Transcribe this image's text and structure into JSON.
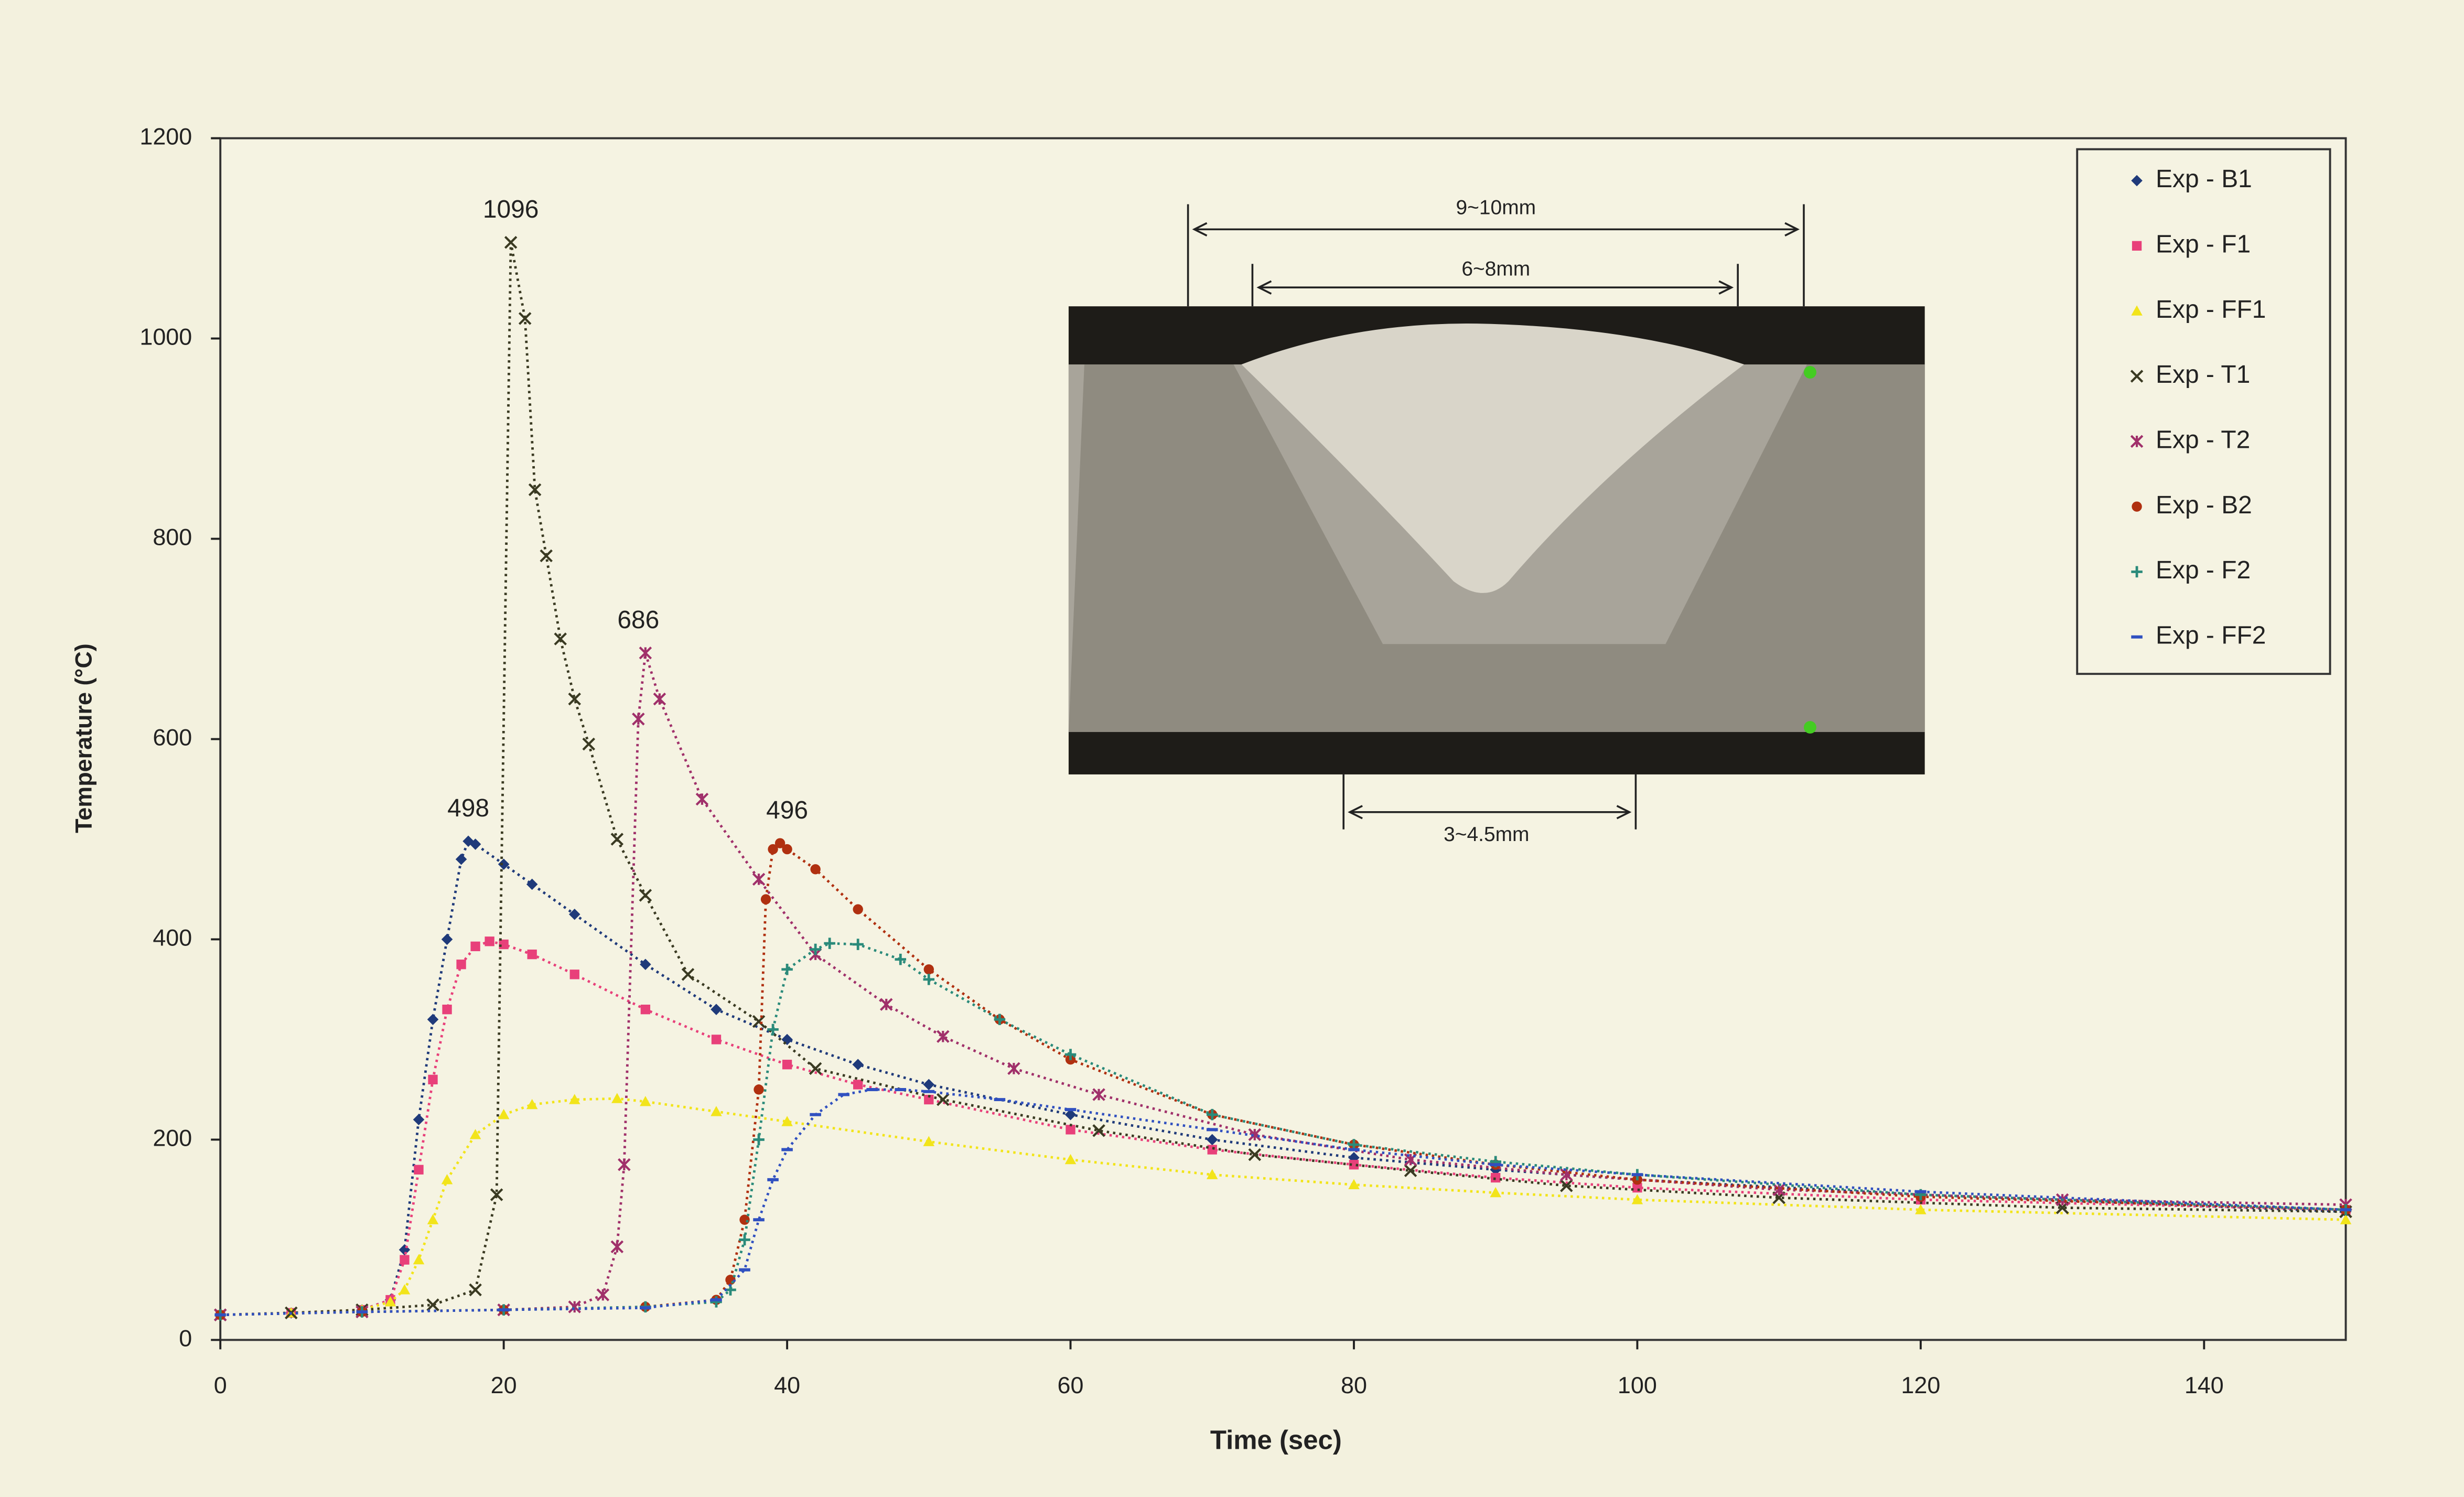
{
  "chart_data": {
    "type": "scatter",
    "x_label": "Time (sec)",
    "y_label": "Temperature (°C)",
    "xlim": [
      0,
      150
    ],
    "xticks": [
      0,
      20,
      40,
      60,
      80,
      100,
      120,
      140
    ],
    "ylim": [
      0,
      1200
    ],
    "yticks": [
      0,
      200,
      400,
      600,
      800,
      1000,
      1200
    ],
    "grid": false,
    "legend": "upper right",
    "series": [
      {
        "name": "Exp - B1",
        "color": "#1f3a7a",
        "marker": "diamond",
        "x": [
          0,
          5,
          10,
          12,
          13,
          14,
          15,
          16,
          17,
          17.5,
          18,
          20,
          22,
          25,
          30,
          35,
          40,
          45,
          50,
          60,
          70,
          80,
          90,
          100,
          120,
          150
        ],
        "values": [
          25,
          27,
          30,
          40,
          90,
          220,
          320,
          400,
          480,
          498,
          495,
          475,
          455,
          425,
          375,
          330,
          300,
          275,
          255,
          225,
          200,
          182,
          170,
          160,
          145,
          128
        ]
      },
      {
        "name": "Exp - F1",
        "color": "#e8407a",
        "marker": "square",
        "x": [
          0,
          5,
          10,
          12,
          13,
          14,
          15,
          16,
          17,
          18,
          19,
          20,
          22,
          25,
          30,
          35,
          40,
          45,
          50,
          60,
          70,
          80,
          90,
          100,
          120,
          150
        ],
        "values": [
          25,
          27,
          30,
          40,
          80,
          170,
          260,
          330,
          375,
          393,
          398,
          395,
          385,
          365,
          330,
          300,
          275,
          255,
          240,
          210,
          190,
          175,
          162,
          152,
          140,
          130
        ]
      },
      {
        "name": "Exp - FF1",
        "color": "#f2e41a",
        "marker": "triangle",
        "x": [
          0,
          5,
          10,
          12,
          13,
          14,
          15,
          16,
          18,
          20,
          22,
          25,
          28,
          30,
          35,
          40,
          50,
          60,
          70,
          80,
          90,
          100,
          120,
          150
        ],
        "values": [
          25,
          27,
          30,
          38,
          50,
          80,
          120,
          160,
          205,
          225,
          235,
          240,
          241,
          238,
          228,
          218,
          198,
          180,
          165,
          155,
          147,
          140,
          130,
          120
        ]
      },
      {
        "name": "Exp - T1",
        "color": "#3a3a22",
        "marker": "x",
        "x": [
          0,
          5,
          10,
          15,
          18,
          19.5,
          20.5,
          21.5,
          22.2,
          23,
          24,
          25,
          26,
          28,
          30,
          33,
          38,
          42,
          51,
          62,
          73,
          84,
          95,
          110,
          130,
          150
        ],
        "values": [
          25,
          27,
          30,
          35,
          50,
          145,
          1096,
          1020,
          849,
          783,
          700,
          640,
          595,
          500,
          444,
          365,
          318,
          271,
          240,
          209,
          185,
          169,
          154,
          142,
          132,
          128
        ]
      },
      {
        "name": "Exp - T2",
        "color": "#a0306a",
        "marker": "star",
        "x": [
          0,
          10,
          20,
          25,
          27,
          28,
          28.5,
          29.5,
          30,
          31,
          34,
          38,
          42,
          47,
          51,
          56,
          62,
          73,
          84,
          95,
          110,
          130,
          150
        ],
        "values": [
          25,
          28,
          30,
          33,
          45,
          93,
          175,
          620,
          686,
          640,
          540,
          460,
          385,
          335,
          303,
          271,
          245,
          205,
          180,
          165,
          150,
          140,
          135
        ]
      },
      {
        "name": "Exp - B2",
        "color": "#b03010",
        "marker": "circle",
        "x": [
          0,
          10,
          20,
          30,
          35,
          36,
          37,
          38,
          38.5,
          39,
          39.5,
          40,
          42,
          45,
          50,
          55,
          60,
          70,
          80,
          90,
          100,
          120,
          150
        ],
        "values": [
          25,
          28,
          30,
          33,
          40,
          60,
          120,
          250,
          440,
          490,
          496,
          490,
          470,
          430,
          370,
          320,
          280,
          225,
          195,
          175,
          160,
          143,
          130
        ]
      },
      {
        "name": "Exp - F2",
        "color": "#2a8a7a",
        "marker": "plus",
        "x": [
          0,
          10,
          20,
          30,
          35,
          36,
          37,
          38,
          39,
          40,
          42,
          43,
          45,
          48,
          50,
          55,
          60,
          70,
          80,
          90,
          100,
          120,
          150
        ],
        "values": [
          25,
          28,
          30,
          33,
          38,
          50,
          100,
          200,
          310,
          370,
          390,
          396,
          395,
          380,
          360,
          320,
          285,
          225,
          195,
          178,
          165,
          145,
          130
        ]
      },
      {
        "name": "Exp - FF2",
        "color": "#3050c0",
        "marker": "dash",
        "x": [
          0,
          10,
          20,
          30,
          35,
          37,
          38,
          39,
          40,
          42,
          44,
          46,
          48,
          50,
          55,
          60,
          70,
          80,
          90,
          100,
          120,
          150
        ],
        "values": [
          25,
          28,
          30,
          32,
          40,
          70,
          120,
          160,
          190,
          225,
          245,
          250,
          250,
          248,
          240,
          230,
          210,
          190,
          175,
          165,
          148,
          130
        ]
      }
    ],
    "annotations": [
      {
        "x": 20.5,
        "y": 1096
      },
      {
        "x": 29.5,
        "y": 686
      },
      {
        "x": 17.5,
        "y": 498
      },
      {
        "x": 40,
        "y": 496
      }
    ],
    "inset": {
      "labels": [
        "9~10mm",
        "6~8mm",
        "3~4.5mm"
      ]
    }
  }
}
